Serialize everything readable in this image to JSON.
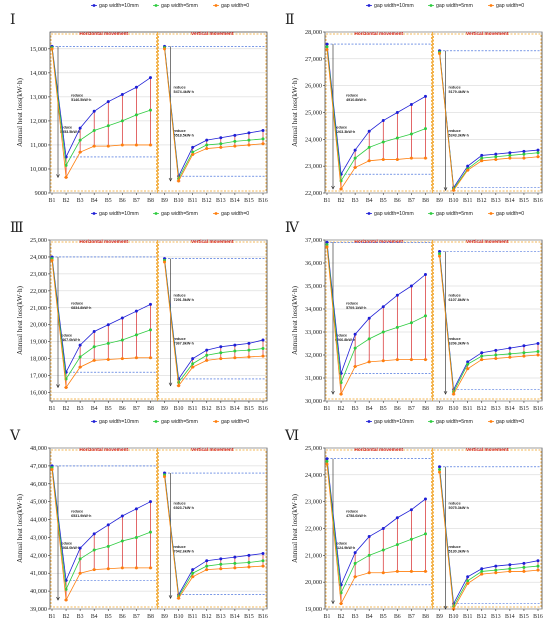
{
  "chart_data": [
    {
      "type": "line",
      "panel_label": "Ⅰ",
      "ylabel": "Annual heat loss(kW·h)",
      "ylim": [
        9000,
        15700
      ],
      "yticks": [
        9000,
        10000,
        11000,
        12000,
        13000,
        14000,
        15000
      ],
      "tick_labels_y": [
        "9000",
        "10,000",
        "11,000",
        "12,000",
        "13,000",
        "14,000",
        "15,000"
      ],
      "categories": [
        "B1",
        "B2",
        "B3",
        "B4",
        "B5",
        "B6",
        "B7",
        "B8",
        "B9",
        "B10",
        "B11",
        "B12",
        "B13",
        "B14",
        "B15",
        "B16"
      ],
      "series": [
        {
          "name": "gap width=10mm",
          "color": "#1f1fd6",
          "values": [
            15100,
            10500,
            11700,
            12400,
            12800,
            13100,
            13400,
            13800,
            15100,
            9700,
            10900,
            11200,
            11300,
            11400,
            11500,
            11600
          ]
        },
        {
          "name": "gap width=5mm",
          "color": "#2ecc40",
          "values": [
            15050,
            10150,
            11200,
            11600,
            11800,
            12000,
            12250,
            12450,
            15050,
            9600,
            10700,
            11000,
            11050,
            11150,
            11200,
            11250
          ]
        },
        {
          "name": "gap width=0",
          "color": "#ff7f0e",
          "values": [
            15000,
            9650,
            10700,
            10950,
            10950,
            11000,
            11000,
            11000,
            15000,
            9500,
            10600,
            10850,
            10900,
            10950,
            11000,
            11050
          ]
        }
      ],
      "regions": [
        "Horizontal movement",
        "Vertical movement"
      ],
      "annotations": [
        "reduce\n5146.5kW·h",
        "reduce\n5553.5kW·h",
        "reduce\n5474.4kW·h",
        "reduce\n5518.5kW·h"
      ],
      "legend_position": "top"
    },
    {
      "type": "line",
      "panel_label": "Ⅱ",
      "ylabel": "Annual heat loss(kW·h)",
      "ylim": [
        22000,
        28000
      ],
      "yticks": [
        22000,
        23000,
        24000,
        25000,
        26000,
        27000,
        28000
      ],
      "tick_labels_y": [
        "22,000",
        "23,000",
        "24,000",
        "25,000",
        "26,000",
        "27,000",
        "28,000"
      ],
      "categories": [
        "B1",
        "B2",
        "B3",
        "B4",
        "B5",
        "B6",
        "B7",
        "B8",
        "B9",
        "B10",
        "B11",
        "B12",
        "B13",
        "B14",
        "B15",
        "B16"
      ],
      "series": [
        {
          "name": "gap width=10mm",
          "color": "#1f1fd6",
          "values": [
            27550,
            22700,
            23600,
            24300,
            24700,
            25000,
            25300,
            25600,
            27300,
            22200,
            23000,
            23400,
            23450,
            23500,
            23550,
            23600
          ]
        },
        {
          "name": "gap width=5mm",
          "color": "#2ecc40",
          "values": [
            27450,
            22450,
            23300,
            23700,
            23900,
            24050,
            24200,
            24400,
            27250,
            22150,
            22900,
            23300,
            23350,
            23400,
            23450,
            23500
          ]
        },
        {
          "name": "gap width=0",
          "color": "#ff7f0e",
          "values": [
            27350,
            22150,
            22950,
            23200,
            23250,
            23250,
            23300,
            23300,
            27200,
            22100,
            22850,
            23200,
            23250,
            23300,
            23300,
            23350
          ]
        }
      ],
      "regions": [
        "Horizontal movement",
        "Vertical movement"
      ],
      "annotations": [
        "reduce\n4910.8kW·h",
        "reduce\n5263.3kW·h",
        "reduce\n5179.4kW·h",
        "reduce\n5243.3kW·h"
      ],
      "legend_position": "top"
    },
    {
      "type": "line",
      "panel_label": "Ⅲ",
      "ylabel": "Annual heat loss(kW·h)",
      "ylim": [
        15500,
        25000
      ],
      "yticks": [
        16000,
        17000,
        18000,
        19000,
        20000,
        21000,
        22000,
        23000,
        24000,
        25000
      ],
      "tick_labels_y": [
        "16,000",
        "17,000",
        "18,000",
        "19,000",
        "20,000",
        "21,000",
        "22,000",
        "23,000",
        "24,000",
        "25,000"
      ],
      "categories": [
        "B1",
        "B2",
        "B3",
        "B4",
        "B5",
        "B6",
        "B7",
        "B8",
        "B9",
        "B10",
        "B11",
        "B12",
        "B13",
        "B14",
        "B15",
        "B16"
      ],
      "series": [
        {
          "name": "gap width=10mm",
          "color": "#1f1fd6",
          "values": [
            24000,
            17200,
            18800,
            19600,
            20000,
            20400,
            20800,
            21200,
            23900,
            16800,
            18000,
            18500,
            18700,
            18800,
            18900,
            19100
          ]
        },
        {
          "name": "gap width=5mm",
          "color": "#2ecc40",
          "values": [
            23900,
            16800,
            18100,
            18700,
            18900,
            19100,
            19400,
            19700,
            23800,
            16600,
            17700,
            18200,
            18350,
            18450,
            18500,
            18600
          ]
        },
        {
          "name": "gap width=0",
          "color": "#ff7f0e",
          "values": [
            23800,
            16300,
            17500,
            17900,
            17950,
            18000,
            18050,
            18050,
            23700,
            16400,
            17500,
            17900,
            18000,
            18050,
            18100,
            18150
          ]
        }
      ],
      "regions": [
        "Horizontal movement",
        "Vertical movement"
      ],
      "annotations": [
        "reduce\n6834.8kW·h",
        "reduce\n7467.0kW·h",
        "reduce\n7291.5kW·h",
        "reduce\n7367.8kW·h"
      ],
      "legend_position": "top"
    },
    {
      "type": "line",
      "panel_label": "Ⅳ",
      "ylabel": "Annual heat loss(kW·h)",
      "ylim": [
        30000,
        37000
      ],
      "yticks": [
        30000,
        31000,
        32000,
        33000,
        34000,
        35000,
        36000,
        37000
      ],
      "tick_labels_y": [
        "30,000",
        "31,000",
        "32,000",
        "33,000",
        "34,000",
        "35,000",
        "36,000",
        "37,000"
      ],
      "categories": [
        "B1",
        "B2",
        "B3",
        "B4",
        "B5",
        "B6",
        "B7",
        "B8",
        "B9",
        "B10",
        "B11",
        "B12",
        "B13",
        "B14",
        "B15",
        "B16"
      ],
      "series": [
        {
          "name": "gap width=10mm",
          "color": "#1f1fd6",
          "values": [
            36900,
            31200,
            32900,
            33600,
            34100,
            34600,
            35000,
            35500,
            36500,
            30500,
            31700,
            32100,
            32200,
            32300,
            32400,
            32500
          ]
        },
        {
          "name": "gap width=5mm",
          "color": "#2ecc40",
          "values": [
            36800,
            30800,
            32300,
            32700,
            33000,
            33200,
            33400,
            33700,
            36400,
            30400,
            31600,
            31950,
            32000,
            32050,
            32100,
            32150
          ]
        },
        {
          "name": "gap width=0",
          "color": "#ff7f0e",
          "values": [
            36700,
            30300,
            31500,
            31700,
            31750,
            31800,
            31800,
            31800,
            36300,
            30300,
            31400,
            31800,
            31850,
            31900,
            31950,
            32000
          ]
        }
      ],
      "regions": [
        "Horizontal movement",
        "Vertical movement"
      ],
      "annotations": [
        "reduce\n5709.1kW·h",
        "reduce\n6266.8kW·h",
        "reduce\n6107.8kW·h",
        "reduce\n6206.3kW·h"
      ],
      "legend_position": "top"
    },
    {
      "type": "line",
      "panel_label": "Ⅴ",
      "ylabel": "Annual heat loss(kW·h)",
      "ylim": [
        39000,
        48000
      ],
      "yticks": [
        39000,
        40000,
        41000,
        42000,
        43000,
        44000,
        45000,
        46000,
        47000,
        48000
      ],
      "tick_labels_y": [
        "39,000",
        "40,000",
        "41,000",
        "42,000",
        "43,000",
        "44,000",
        "45,000",
        "46,000",
        "47,000",
        "48,000"
      ],
      "categories": [
        "B1",
        "B2",
        "B3",
        "B4",
        "B5",
        "B6",
        "B7",
        "B8",
        "B9",
        "B10",
        "B11",
        "B12",
        "B13",
        "B14",
        "B15",
        "B16"
      ],
      "series": [
        {
          "name": "gap width=10mm",
          "color": "#1f1fd6",
          "values": [
            47000,
            40600,
            42400,
            43200,
            43700,
            44200,
            44600,
            45000,
            46600,
            39800,
            41200,
            41700,
            41800,
            41900,
            42000,
            42100
          ]
        },
        {
          "name": "gap width=5mm",
          "color": "#2ecc40",
          "values": [
            46900,
            40100,
            41800,
            42300,
            42500,
            42800,
            43000,
            43300,
            46500,
            39700,
            41000,
            41400,
            41500,
            41550,
            41600,
            41700
          ]
        },
        {
          "name": "gap width=0",
          "color": "#ff7f0e",
          "values": [
            46800,
            39500,
            41000,
            41200,
            41250,
            41300,
            41300,
            41300,
            46400,
            39600,
            40800,
            41200,
            41250,
            41300,
            41350,
            41400
          ]
        }
      ],
      "regions": [
        "Horizontal movement",
        "Vertical movement"
      ],
      "annotations": [
        "reduce\n6531.9kW·h",
        "reduce\n7068.0kW·h",
        "reduce\n6923.7kW·h",
        "reduce\n7042.6kW·h"
      ],
      "legend_position": "top"
    },
    {
      "type": "line",
      "panel_label": "Ⅵ",
      "ylabel": "Annual heat loss(kW·h)",
      "ylim": [
        19000,
        25000
      ],
      "yticks": [
        19000,
        20000,
        21000,
        22000,
        23000,
        24000,
        25000
      ],
      "tick_labels_y": [
        "19,000",
        "20,000",
        "21,000",
        "22,000",
        "23,000",
        "24,000",
        "25,000"
      ],
      "categories": [
        "B1",
        "B2",
        "B3",
        "B4",
        "B5",
        "B6",
        "B7",
        "B8",
        "B9",
        "B10",
        "B11",
        "B12",
        "B13",
        "B14",
        "B15",
        "B16"
      ],
      "series": [
        {
          "name": "gap width=10mm",
          "color": "#1f1fd6",
          "values": [
            24600,
            19900,
            21100,
            21700,
            22000,
            22400,
            22700,
            23100,
            24300,
            19200,
            20200,
            20500,
            20600,
            20650,
            20700,
            20800
          ]
        },
        {
          "name": "gap width=5mm",
          "color": "#2ecc40",
          "values": [
            24500,
            19600,
            20700,
            21000,
            21200,
            21400,
            21600,
            21800,
            24200,
            19100,
            20050,
            20400,
            20450,
            20500,
            20550,
            20600
          ]
        },
        {
          "name": "gap width=0",
          "color": "#ff7f0e",
          "values": [
            24400,
            19200,
            20200,
            20350,
            20350,
            20400,
            20400,
            20400,
            24100,
            19000,
            19950,
            20300,
            20350,
            20400,
            20400,
            20450
          ]
        }
      ],
      "regions": [
        "Horizontal movement",
        "Vertical movement"
      ],
      "annotations": [
        "reduce\n4758.6kW·h",
        "reduce\n5124.9kW·h",
        "reduce\n5075.3kW·h",
        "reduce\n5130.3kW·h"
      ],
      "legend_position": "top"
    }
  ]
}
